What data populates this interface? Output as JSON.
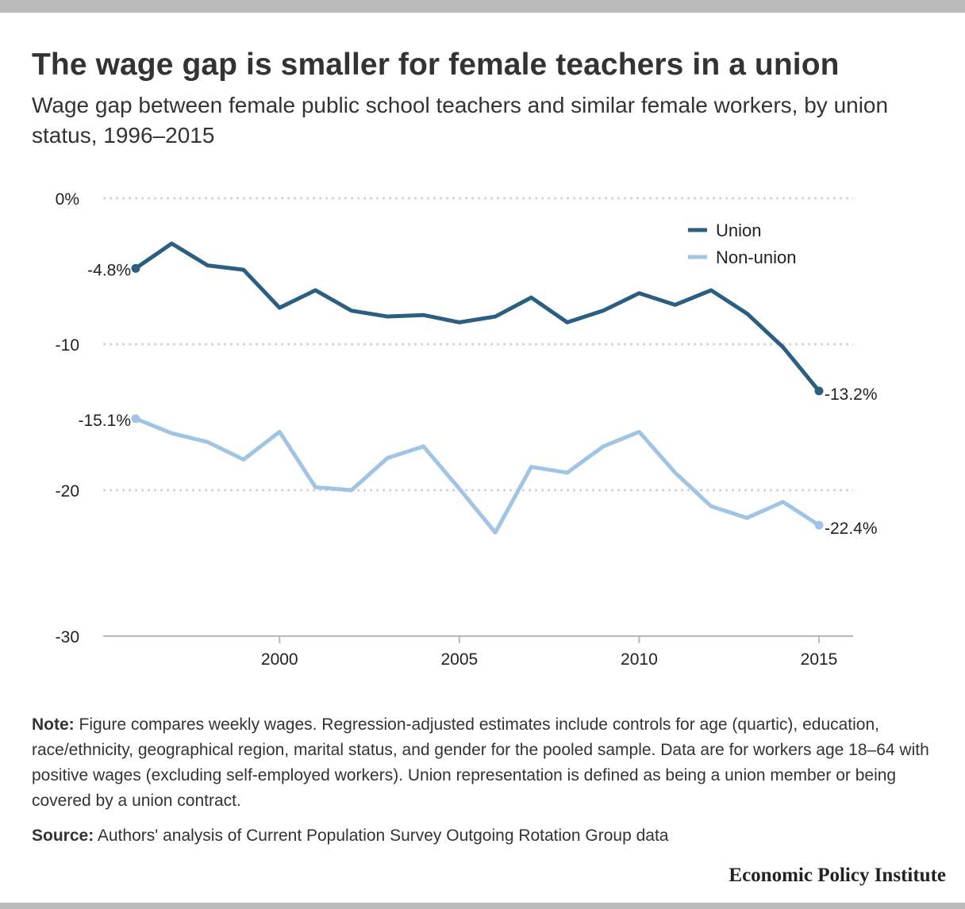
{
  "header": {
    "title": "The wage gap is smaller for female teachers in a union",
    "subtitle": "Wage gap between female public school teachers and similar female workers, by union status, 1996–2015"
  },
  "chart_data": {
    "type": "line",
    "x": [
      1996,
      1997,
      1998,
      1999,
      2000,
      2001,
      2002,
      2003,
      2004,
      2005,
      2006,
      2007,
      2008,
      2009,
      2010,
      2011,
      2012,
      2013,
      2014,
      2015
    ],
    "series": [
      {
        "name": "Union",
        "color": "#2b5f82",
        "values": [
          -4.8,
          -3.1,
          -4.6,
          -4.9,
          -7.5,
          -6.3,
          -7.7,
          -8.1,
          -8.0,
          -8.5,
          -8.1,
          -6.8,
          -8.5,
          -7.7,
          -6.5,
          -7.3,
          -6.3,
          -7.9,
          -10.2,
          -13.2
        ],
        "start_label": "-4.8%",
        "end_label": "-13.2%"
      },
      {
        "name": "Non-union",
        "color": "#a0c4e4",
        "values": [
          -15.1,
          -16.1,
          -16.7,
          -17.9,
          -16.0,
          -19.8,
          -20.0,
          -17.8,
          -17.0,
          -19.9,
          -22.9,
          -18.4,
          -18.8,
          -17.0,
          -16.0,
          -18.8,
          -21.1,
          -21.9,
          -20.8,
          -22.4
        ],
        "start_label": "-15.1%",
        "end_label": "-22.4%"
      }
    ],
    "ylim": [
      -30,
      0
    ],
    "yticks": [
      0,
      -10,
      -20,
      -30
    ],
    "ytick_labels": [
      "0%",
      "-10",
      "-20",
      "-30"
    ],
    "xticks": [
      2000,
      2005,
      2010,
      2015
    ],
    "xtick_labels": [
      "2000",
      "2005",
      "2010",
      "2015"
    ],
    "grid": true,
    "legend_position": "top-right"
  },
  "notes": {
    "note_label": "Note:",
    "note_text": " Figure compares weekly wages. Regression-adjusted estimates include controls for age (quartic), education, race/ethnicity, geographical region, marital status, and gender for the pooled sample. Data are for workers age 18–64 with positive wages (excluding self-employed workers). Union representation is defined as being a union member or being covered by a union contract.",
    "source_label": "Source:",
    "source_text": " Authors' analysis of Current Population Survey Outgoing Rotation Group data"
  },
  "footer": {
    "logo": "Economic Policy Institute"
  }
}
